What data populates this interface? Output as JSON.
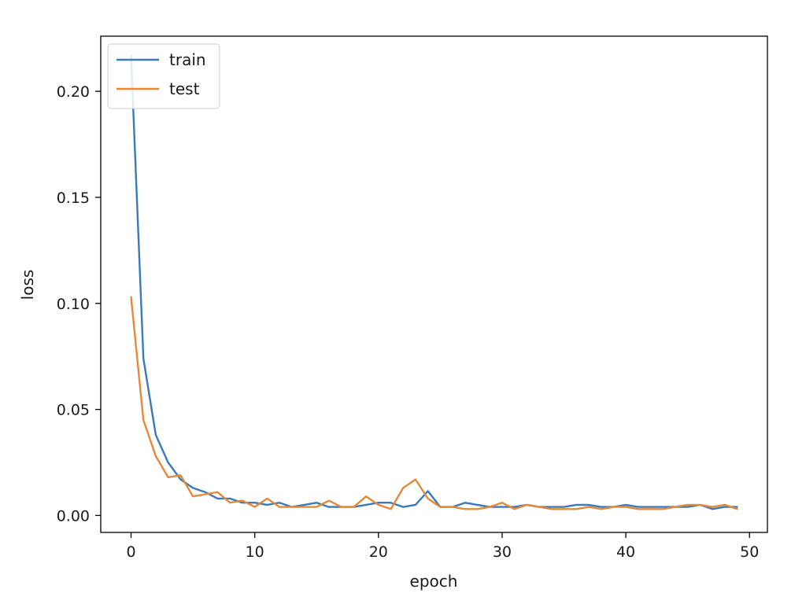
{
  "chart_data": {
    "type": "line",
    "title": "",
    "xlabel": "epoch",
    "ylabel": "loss",
    "xlim": [
      -2.45,
      51.45
    ],
    "ylim": [
      -0.008,
      0.226
    ],
    "xticks": [
      0,
      10,
      20,
      30,
      40,
      50
    ],
    "xtick_labels": [
      "0",
      "10",
      "20",
      "30",
      "40",
      "50"
    ],
    "yticks": [
      0.0,
      0.05,
      0.1,
      0.15,
      0.2
    ],
    "ytick_labels": [
      "0.00",
      "0.05",
      "0.10",
      "0.15",
      "0.20"
    ],
    "grid": false,
    "legend_position": "upper-left",
    "x": [
      0,
      1,
      2,
      3,
      4,
      5,
      6,
      7,
      8,
      9,
      10,
      11,
      12,
      13,
      14,
      15,
      16,
      17,
      18,
      19,
      20,
      21,
      22,
      23,
      24,
      25,
      26,
      27,
      28,
      29,
      30,
      31,
      32,
      33,
      34,
      35,
      36,
      37,
      38,
      39,
      40,
      41,
      42,
      43,
      44,
      45,
      46,
      47,
      48,
      49
    ],
    "series": [
      {
        "name": "train",
        "color": "#3b7ab8",
        "values": [
          0.217,
          0.074,
          0.038,
          0.025,
          0.017,
          0.013,
          0.011,
          0.008,
          0.008,
          0.006,
          0.006,
          0.005,
          0.006,
          0.004,
          0.005,
          0.006,
          0.004,
          0.004,
          0.004,
          0.005,
          0.006,
          0.006,
          0.004,
          0.005,
          0.0115,
          0.004,
          0.004,
          0.006,
          0.005,
          0.004,
          0.004,
          0.004,
          0.005,
          0.004,
          0.004,
          0.004,
          0.005,
          0.005,
          0.004,
          0.004,
          0.005,
          0.004,
          0.004,
          0.004,
          0.004,
          0.004,
          0.005,
          0.003,
          0.004,
          0.004
        ]
      },
      {
        "name": "test",
        "color": "#e4893a",
        "values": [
          0.103,
          0.045,
          0.028,
          0.018,
          0.019,
          0.009,
          0.01,
          0.011,
          0.006,
          0.007,
          0.004,
          0.008,
          0.004,
          0.004,
          0.004,
          0.004,
          0.007,
          0.004,
          0.004,
          0.009,
          0.005,
          0.003,
          0.013,
          0.017,
          0.008,
          0.004,
          0.004,
          0.003,
          0.003,
          0.004,
          0.006,
          0.003,
          0.005,
          0.004,
          0.003,
          0.003,
          0.003,
          0.004,
          0.003,
          0.004,
          0.004,
          0.003,
          0.003,
          0.003,
          0.004,
          0.005,
          0.005,
          0.004,
          0.005,
          0.003
        ]
      }
    ]
  }
}
